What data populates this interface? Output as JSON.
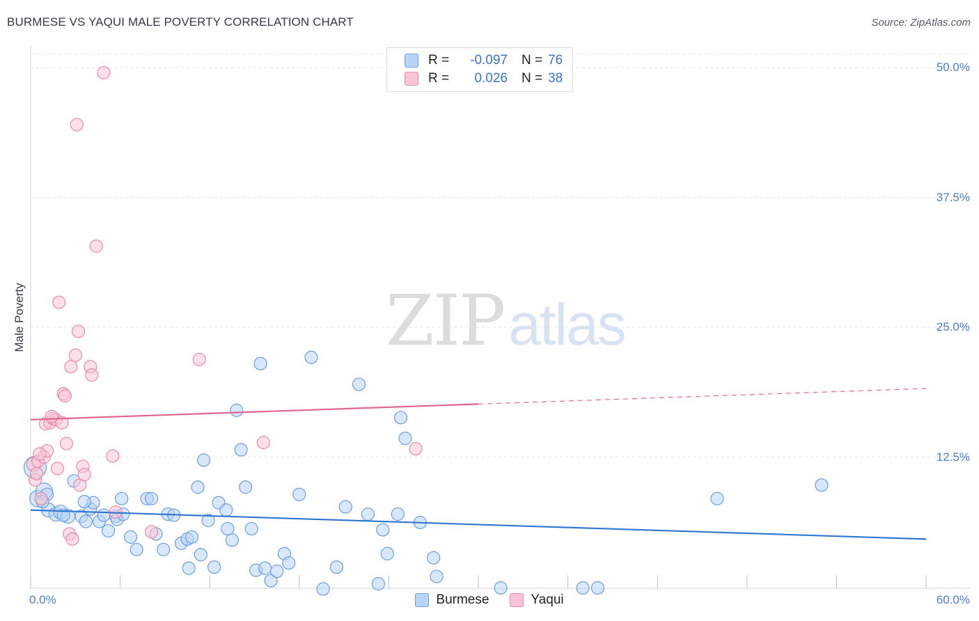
{
  "header": {
    "title": "BURMESE VS YAQUI MALE POVERTY CORRELATION CHART",
    "source": "Source: ZipAtlas.com"
  },
  "watermark": {
    "zip": "ZIP",
    "atlas": "atlas"
  },
  "legend": {
    "rows": [
      {
        "r_label": "R =",
        "r_value": "-0.097",
        "n_label": "N =",
        "n_value": "76"
      },
      {
        "r_label": "R =",
        "r_value": "0.026",
        "n_label": "N =",
        "n_value": "38"
      }
    ],
    "bottom": [
      "Burmese",
      "Yaqui"
    ]
  },
  "colors": {
    "burmese_fill": "#b8d3f4",
    "burmese_stroke": "#6b9fe0",
    "burmese_line": "#2f76d2",
    "yaqui_fill": "#f9c5d6",
    "yaqui_stroke": "#ea8aab",
    "yaqui_line": "#e0668f",
    "grid": "#e3e6ea",
    "axis_text": "#4a7fd0"
  },
  "chart_data": {
    "type": "scatter",
    "title": "BURMESE VS YAQUI MALE POVERTY CORRELATION CHART",
    "xlabel": "",
    "ylabel": "Male Poverty",
    "xlim": [
      0,
      60
    ],
    "ylim": [
      0,
      51
    ],
    "y_ticks": [
      {
        "value": 12.5,
        "label": "12.5%"
      },
      {
        "value": 25.0,
        "label": "25.0%"
      },
      {
        "value": 37.5,
        "label": "37.5%"
      },
      {
        "value": 50.0,
        "label": "50.0%"
      }
    ],
    "x_ticks": [
      {
        "value": 0,
        "label": "0.0%"
      },
      {
        "value": 60,
        "label": "60.0%"
      }
    ],
    "grid": true,
    "legend_position": "top-center",
    "series": [
      {
        "name": "Burmese",
        "r": -0.097,
        "n": 76,
        "trend": {
          "x0": 0,
          "y0": 7.4,
          "x1": 60,
          "y1": 4.6,
          "dashed_from_x": null
        },
        "points": [
          [
            0.3,
            11.5,
            16
          ],
          [
            0.5,
            8.5,
            12
          ],
          [
            0.9,
            9.2,
            12
          ],
          [
            1.2,
            7.4,
            10
          ],
          [
            1.7,
            7.0,
            10
          ],
          [
            2.0,
            7.2,
            10
          ],
          [
            2.5,
            6.8,
            10
          ],
          [
            2.9,
            10.2,
            9
          ],
          [
            3.4,
            6.8,
            9
          ],
          [
            3.7,
            6.3,
            9
          ],
          [
            4.0,
            7.5,
            9
          ],
          [
            4.2,
            8.1,
            9
          ],
          [
            4.6,
            6.3,
            9
          ],
          [
            4.9,
            6.9,
            9
          ],
          [
            5.2,
            5.4,
            9
          ],
          [
            5.7,
            6.8,
            9
          ],
          [
            5.8,
            6.5,
            9
          ],
          [
            6.2,
            7.0,
            9
          ],
          [
            6.7,
            4.8,
            9
          ],
          [
            7.1,
            3.6,
            9
          ],
          [
            7.8,
            8.5,
            9
          ],
          [
            8.1,
            8.5,
            9
          ],
          [
            8.4,
            5.1,
            9
          ],
          [
            8.9,
            3.6,
            9
          ],
          [
            9.2,
            7.0,
            9
          ],
          [
            9.6,
            6.9,
            9
          ],
          [
            10.1,
            4.2,
            9
          ],
          [
            10.5,
            4.6,
            9
          ],
          [
            10.6,
            1.8,
            9
          ],
          [
            10.8,
            4.8,
            9
          ],
          [
            11.2,
            9.6,
            9
          ],
          [
            11.4,
            3.1,
            9
          ],
          [
            11.6,
            12.2,
            9
          ],
          [
            11.9,
            6.4,
            9
          ],
          [
            12.3,
            1.9,
            9
          ],
          [
            12.6,
            8.1,
            9
          ],
          [
            13.1,
            7.4,
            9
          ],
          [
            13.2,
            5.6,
            9
          ],
          [
            13.5,
            4.5,
            9
          ],
          [
            13.8,
            17.0,
            9
          ],
          [
            14.1,
            13.2,
            9
          ],
          [
            14.4,
            9.6,
            9
          ],
          [
            14.8,
            5.6,
            9
          ],
          [
            15.1,
            1.6,
            9
          ],
          [
            15.4,
            21.5,
            9
          ],
          [
            15.7,
            1.8,
            9
          ],
          [
            16.1,
            0.6,
            9
          ],
          [
            16.5,
            1.5,
            9
          ],
          [
            17.0,
            3.2,
            9
          ],
          [
            17.3,
            2.3,
            9
          ],
          [
            18.0,
            8.9,
            9
          ],
          [
            18.8,
            22.1,
            9
          ],
          [
            19.6,
            -0.2,
            9
          ],
          [
            20.5,
            1.9,
            9
          ],
          [
            21.1,
            7.7,
            9
          ],
          [
            22.0,
            19.5,
            9
          ],
          [
            22.6,
            7.0,
            9
          ],
          [
            23.3,
            0.3,
            9
          ],
          [
            23.6,
            5.5,
            9
          ],
          [
            23.9,
            3.2,
            9
          ],
          [
            24.6,
            7.0,
            9
          ],
          [
            24.8,
            16.3,
            9
          ],
          [
            25.1,
            14.3,
            9
          ],
          [
            26.1,
            6.2,
            9
          ],
          [
            27.0,
            2.8,
            9
          ],
          [
            27.2,
            1.0,
            9
          ],
          [
            31.5,
            -0.1,
            9
          ],
          [
            37.0,
            -0.1,
            9
          ],
          [
            38.0,
            -0.1,
            9
          ],
          [
            46.0,
            8.5,
            9
          ],
          [
            53.0,
            9.8,
            9
          ],
          [
            1.1,
            8.9,
            9
          ],
          [
            3.6,
            8.2,
            9
          ],
          [
            6.1,
            8.5,
            9
          ],
          [
            0.8,
            8.2,
            9
          ],
          [
            2.2,
            6.9,
            9
          ]
        ]
      },
      {
        "name": "Yaqui",
        "r": 0.026,
        "n": 38,
        "trend": {
          "x0": 0,
          "y0": 16.1,
          "x1": 60,
          "y1": 19.1,
          "dashed_from_x": 30.0
        },
        "points": [
          [
            0.2,
            11.8,
            10
          ],
          [
            0.3,
            10.3,
            9
          ],
          [
            0.4,
            10.9,
            9
          ],
          [
            0.5,
            12.1,
            9
          ],
          [
            0.7,
            8.5,
            9
          ],
          [
            0.9,
            12.5,
            9
          ],
          [
            1.0,
            15.7,
            9
          ],
          [
            1.1,
            13.1,
            9
          ],
          [
            1.3,
            15.8,
            9
          ],
          [
            1.5,
            16.2,
            9
          ],
          [
            1.7,
            16.1,
            9
          ],
          [
            1.8,
            11.4,
            9
          ],
          [
            1.9,
            27.4,
            9
          ],
          [
            2.1,
            15.8,
            9
          ],
          [
            2.2,
            18.6,
            9
          ],
          [
            2.3,
            18.4,
            9
          ],
          [
            2.4,
            13.8,
            9
          ],
          [
            2.6,
            5.1,
            9
          ],
          [
            2.7,
            21.2,
            9
          ],
          [
            2.8,
            4.6,
            9
          ],
          [
            3.0,
            22.3,
            9
          ],
          [
            3.1,
            44.5,
            9
          ],
          [
            3.2,
            24.6,
            9
          ],
          [
            3.3,
            9.8,
            9
          ],
          [
            3.5,
            11.6,
            9
          ],
          [
            3.6,
            10.8,
            9
          ],
          [
            4.0,
            21.2,
            9
          ],
          [
            4.1,
            20.4,
            9
          ],
          [
            4.4,
            32.8,
            9
          ],
          [
            4.9,
            49.5,
            9
          ],
          [
            5.5,
            12.6,
            9
          ],
          [
            5.7,
            7.2,
            9
          ],
          [
            8.1,
            5.3,
            9
          ],
          [
            11.3,
            21.9,
            9
          ],
          [
            15.6,
            13.9,
            9
          ],
          [
            25.8,
            13.3,
            9
          ],
          [
            0.6,
            12.8,
            9
          ],
          [
            1.4,
            16.4,
            9
          ]
        ]
      }
    ]
  }
}
